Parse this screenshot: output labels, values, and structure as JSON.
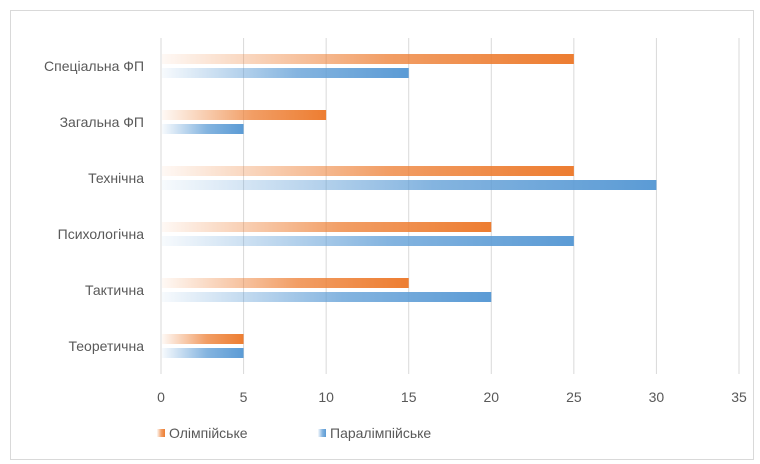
{
  "chart_data": {
    "type": "bar",
    "orientation": "horizontal",
    "categories": [
      "Спеціальна ФП",
      "Загальна ФП",
      "Технічна",
      "Психологічна",
      "Тактична",
      "Теоретична"
    ],
    "series": [
      {
        "name": "Олімпійське",
        "values": [
          25,
          10,
          25,
          20,
          15,
          5
        ],
        "color": "#ED7D31"
      },
      {
        "name": "Паралімпійське",
        "values": [
          15,
          5,
          30,
          25,
          20,
          5
        ],
        "color": "#5B9BD5"
      }
    ],
    "xlim": [
      0,
      35
    ],
    "xticks": [
      "0",
      "5",
      "10",
      "15",
      "20",
      "25",
      "30",
      "35"
    ],
    "grid": true,
    "legend_position": "bottom-left",
    "title": "",
    "xlabel": "",
    "ylabel": ""
  }
}
